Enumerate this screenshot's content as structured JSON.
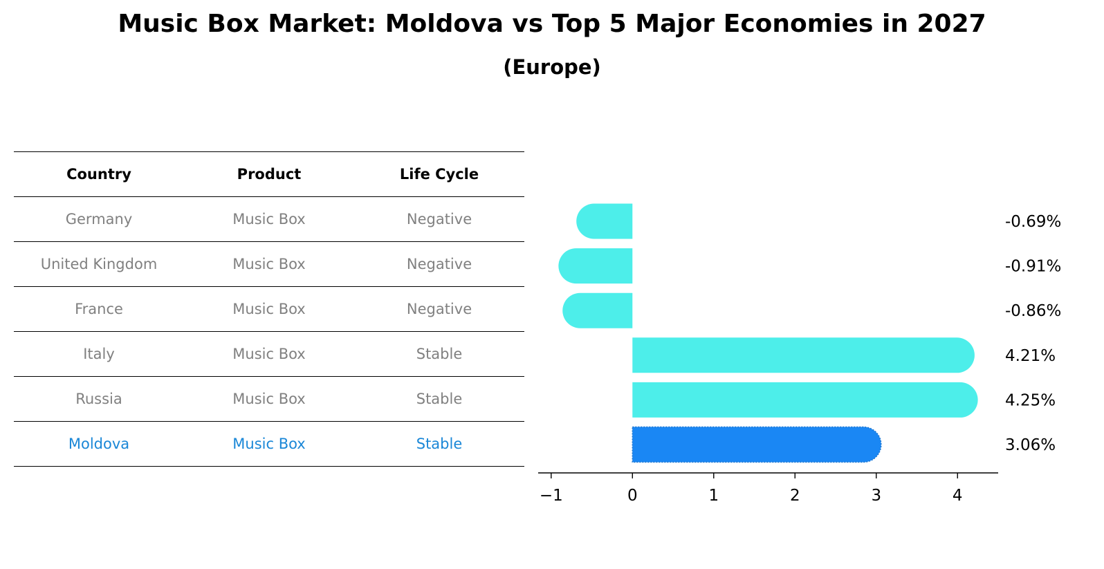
{
  "title": "Music Box Market: Moldova vs Top 5 Major Economies in 2027",
  "subtitle": "(Europe)",
  "table": {
    "headers": [
      "Country",
      "Product",
      "Life Cycle"
    ],
    "rows": [
      [
        "Germany",
        "Music Box",
        "Negative"
      ],
      [
        "United Kingdom",
        "Music Box",
        "Negative"
      ],
      [
        "France",
        "Music Box",
        "Negative"
      ],
      [
        "Italy",
        "Music Box",
        "Stable"
      ],
      [
        "Russia",
        "Music Box",
        "Stable"
      ],
      [
        "Moldova",
        "Music Box",
        "Stable"
      ]
    ],
    "highlight_row": 5
  },
  "colors": {
    "bar": "#4deeea",
    "highlight": "#1a87f4",
    "text_grey": "#808080",
    "text_highlight": "#1a87d7"
  },
  "chart_data": {
    "type": "bar",
    "orientation": "horizontal",
    "categories": [
      "Germany",
      "United Kingdom",
      "France",
      "Italy",
      "Russia",
      "Moldova"
    ],
    "values": [
      -0.69,
      -0.91,
      -0.86,
      4.21,
      4.25,
      3.06
    ],
    "value_labels": [
      "-0.69%",
      "-0.91%",
      "-0.86%",
      "4.21%",
      "4.25%",
      "3.06%"
    ],
    "xlim": [
      -1.16,
      4.5
    ],
    "xticks": [
      -1,
      0,
      1,
      2,
      3,
      4
    ],
    "xtick_labels": [
      "−1",
      "0",
      "1",
      "2",
      "3",
      "4"
    ],
    "highlight_index": 5
  }
}
